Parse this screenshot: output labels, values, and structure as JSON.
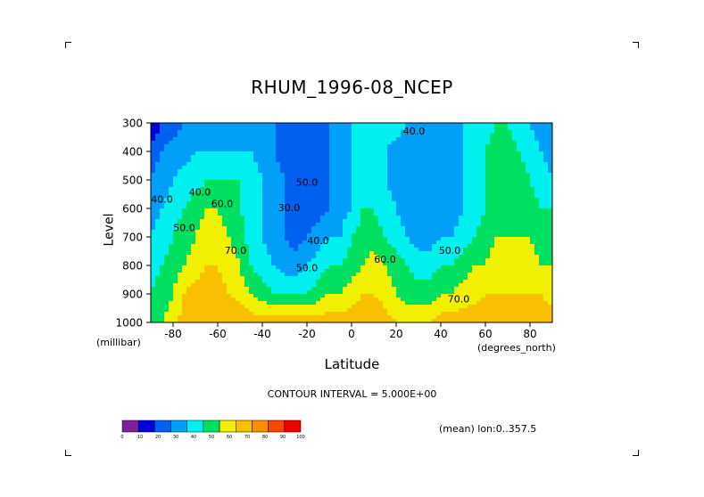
{
  "chart_data": {
    "type": "heatmap",
    "title": "RHUM_1996-08_NCEP",
    "xlabel": "Latitude",
    "ylabel": "Level",
    "x_unit": "(degrees_north)",
    "y_unit": "(millibar)",
    "xlim": [
      -90,
      90
    ],
    "ylim": [
      1000,
      300
    ],
    "x_ticks": [
      -80,
      -60,
      -40,
      -20,
      0,
      20,
      40,
      60,
      80
    ],
    "y_ticks": [
      300,
      400,
      500,
      600,
      700,
      800,
      900,
      1000
    ],
    "contour_interval_text": "CONTOUR INTERVAL = 5.000E+00",
    "mean_text": "(mean) lon:0..357.5",
    "colorbar": {
      "ticks": [
        0,
        10,
        20,
        30,
        40,
        50,
        60,
        70,
        80,
        90,
        100
      ],
      "colors": [
        "#7f1fa0",
        "#0000d8",
        "#0060f0",
        "#00a0f8",
        "#00f0f0",
        "#00e060",
        "#f0f000",
        "#f8c000",
        "#f89000",
        "#f84800",
        "#f00000"
      ]
    },
    "contour_labels": [
      {
        "text": "40.0",
        "x": 28,
        "y": 340
      },
      {
        "text": "50.0",
        "x": -20,
        "y": 520
      },
      {
        "text": "30.0",
        "x": -28,
        "y": 610
      },
      {
        "text": "40.0",
        "x": -68,
        "y": 555
      },
      {
        "text": "60.0",
        "x": -58,
        "y": 595
      },
      {
        "text": "50.0",
        "x": -75,
        "y": 680
      },
      {
        "text": "40.0",
        "x": -85,
        "y": 580
      },
      {
        "text": "70.0",
        "x": -52,
        "y": 760
      },
      {
        "text": "40.0",
        "x": -15,
        "y": 725
      },
      {
        "text": "50.0",
        "x": -20,
        "y": 820
      },
      {
        "text": "60.0",
        "x": 15,
        "y": 790
      },
      {
        "text": "50.0",
        "x": 44,
        "y": 760
      },
      {
        "text": "70.0",
        "x": 48,
        "y": 930
      }
    ],
    "grid": [
      [
        10,
        20,
        25,
        30,
        30,
        30,
        30,
        30,
        30,
        30,
        30,
        30,
        25,
        20,
        20,
        25,
        30,
        35,
        40,
        45,
        50,
        50,
        45,
        40,
        40,
        40,
        35,
        35,
        40,
        45,
        45,
        50,
        50,
        45,
        40,
        35,
        30
      ],
      [
        25,
        30,
        35,
        35,
        40,
        40,
        40,
        40,
        40,
        40,
        35,
        30,
        25,
        20,
        20,
        25,
        30,
        35,
        40,
        45,
        45,
        40,
        35,
        35,
        35,
        35,
        35,
        35,
        40,
        45,
        50,
        55,
        55,
        50,
        45,
        40,
        35
      ],
      [
        30,
        35,
        40,
        45,
        45,
        50,
        50,
        50,
        50,
        45,
        40,
        35,
        30,
        25,
        20,
        25,
        30,
        35,
        40,
        45,
        45,
        40,
        35,
        30,
        30,
        30,
        30,
        35,
        40,
        45,
        50,
        55,
        55,
        55,
        50,
        45,
        40
      ],
      [
        35,
        40,
        45,
        50,
        55,
        60,
        60,
        55,
        50,
        45,
        40,
        35,
        30,
        25,
        25,
        25,
        30,
        35,
        40,
        50,
        50,
        45,
        40,
        35,
        30,
        30,
        35,
        35,
        40,
        45,
        50,
        55,
        55,
        55,
        55,
        50,
        50
      ],
      [
        40,
        45,
        50,
        55,
        60,
        65,
        65,
        60,
        55,
        45,
        40,
        35,
        30,
        25,
        30,
        35,
        40,
        40,
        50,
        55,
        55,
        50,
        45,
        40,
        35,
        35,
        40,
        40,
        45,
        50,
        55,
        60,
        60,
        60,
        60,
        55,
        55
      ],
      [
        45,
        50,
        55,
        60,
        65,
        70,
        70,
        65,
        60,
        50,
        45,
        40,
        35,
        35,
        40,
        45,
        50,
        50,
        55,
        60,
        65,
        60,
        55,
        50,
        45,
        45,
        50,
        50,
        55,
        60,
        60,
        65,
        65,
        65,
        65,
        60,
        60
      ],
      [
        50,
        55,
        60,
        70,
        75,
        75,
        75,
        70,
        65,
        60,
        55,
        50,
        50,
        50,
        50,
        55,
        60,
        60,
        65,
        70,
        70,
        65,
        60,
        55,
        55,
        55,
        60,
        60,
        65,
        65,
        70,
        70,
        70,
        70,
        70,
        70,
        65
      ],
      [
        55,
        60,
        65,
        75,
        80,
        80,
        80,
        80,
        80,
        75,
        75,
        75,
        75,
        75,
        75,
        75,
        75,
        75,
        75,
        80,
        80,
        75,
        70,
        70,
        70,
        70,
        75,
        75,
        75,
        80,
        80,
        80,
        80,
        80,
        80,
        80,
        75
      ]
    ]
  }
}
